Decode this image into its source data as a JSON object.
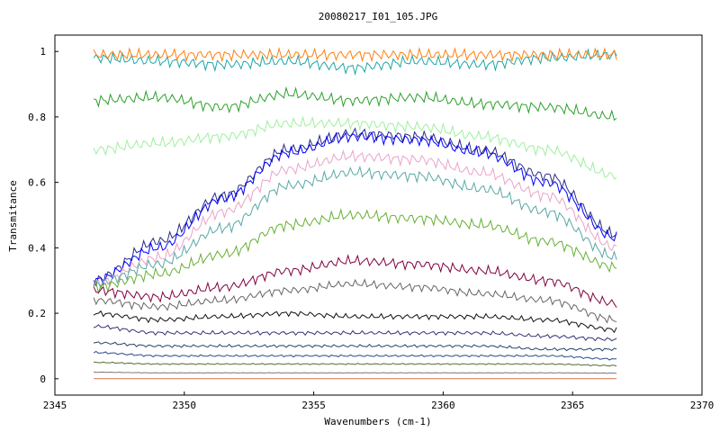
{
  "chart_data": {
    "type": "line",
    "title": "20080217_I01_105.JPG",
    "xlabel": "Wavenumbers (cm-1)",
    "ylabel": "Transmitance",
    "xlim": [
      2345,
      2370
    ],
    "ylim": [
      -0.05,
      1.05
    ],
    "xticks": [
      "2345",
      "2350",
      "2355",
      "2360",
      "2365",
      "2370"
    ],
    "yticks": [
      "0",
      "0.2",
      "0.4",
      "0.6",
      "0.8",
      "1"
    ],
    "x_range_data": [
      2346.5,
      2366.7
    ],
    "grid": false,
    "legend": "none",
    "series": [
      {
        "color": "#1fa6a6",
        "values": [
          0.98,
          0.97,
          0.96,
          0.97,
          0.95,
          0.97,
          0.96,
          0.98,
          0.99
        ]
      },
      {
        "color": "#ff7f0e",
        "values": [
          0.99,
          0.99,
          0.99,
          0.99,
          0.99,
          0.99,
          0.99,
          0.99,
          0.99
        ]
      },
      {
        "color": "#2ca02c",
        "values": [
          0.85,
          0.86,
          0.83,
          0.87,
          0.85,
          0.86,
          0.84,
          0.83,
          0.8
        ]
      },
      {
        "color": "#9fef9f",
        "values": [
          0.7,
          0.72,
          0.74,
          0.78,
          0.78,
          0.77,
          0.74,
          0.7,
          0.62
        ]
      },
      {
        "color": "#2a2a8a",
        "values": [
          0.3,
          0.42,
          0.56,
          0.7,
          0.75,
          0.74,
          0.7,
          0.62,
          0.44
        ]
      },
      {
        "color": "#0000ff",
        "values": [
          0.3,
          0.4,
          0.55,
          0.69,
          0.74,
          0.73,
          0.69,
          0.6,
          0.43
        ]
      },
      {
        "color": "#e9a3c9",
        "values": [
          0.29,
          0.37,
          0.51,
          0.64,
          0.68,
          0.67,
          0.63,
          0.56,
          0.4
        ]
      },
      {
        "color": "#5aa7a7",
        "values": [
          0.29,
          0.35,
          0.46,
          0.59,
          0.63,
          0.62,
          0.58,
          0.51,
          0.37
        ]
      },
      {
        "color": "#66b032",
        "values": [
          0.28,
          0.32,
          0.38,
          0.47,
          0.5,
          0.49,
          0.47,
          0.42,
          0.34
        ]
      },
      {
        "color": "#800040",
        "values": [
          0.27,
          0.25,
          0.28,
          0.33,
          0.36,
          0.35,
          0.33,
          0.3,
          0.23
        ]
      },
      {
        "color": "#666666",
        "values": [
          0.24,
          0.22,
          0.24,
          0.27,
          0.29,
          0.28,
          0.26,
          0.24,
          0.18
        ]
      },
      {
        "color": "#111111",
        "values": [
          0.2,
          0.18,
          0.19,
          0.2,
          0.19,
          0.19,
          0.19,
          0.18,
          0.15
        ]
      },
      {
        "color": "#333377",
        "values": [
          0.16,
          0.14,
          0.14,
          0.14,
          0.14,
          0.14,
          0.14,
          0.13,
          0.12
        ]
      },
      {
        "color": "#224466",
        "values": [
          0.11,
          0.1,
          0.1,
          0.1,
          0.1,
          0.1,
          0.1,
          0.09,
          0.09
        ]
      },
      {
        "color": "#2a4a8a",
        "values": [
          0.08,
          0.07,
          0.07,
          0.07,
          0.07,
          0.07,
          0.07,
          0.07,
          0.06
        ]
      },
      {
        "color": "#556b2f",
        "values": [
          0.05,
          0.045,
          0.045,
          0.045,
          0.045,
          0.045,
          0.045,
          0.045,
          0.04
        ]
      },
      {
        "color": "#777777",
        "values": [
          0.02,
          0.018,
          0.018,
          0.018,
          0.018,
          0.018,
          0.018,
          0.018,
          0.017
        ]
      },
      {
        "color": "#d4704a",
        "values": [
          0.0,
          0.0,
          0.0,
          0.0,
          0.0,
          0.0,
          0.0,
          0.0,
          0.0
        ]
      }
    ],
    "x": [
      2346.5,
      2349,
      2351.5,
      2354,
      2356.5,
      2359,
      2361.5,
      2364,
      2366.7
    ]
  }
}
